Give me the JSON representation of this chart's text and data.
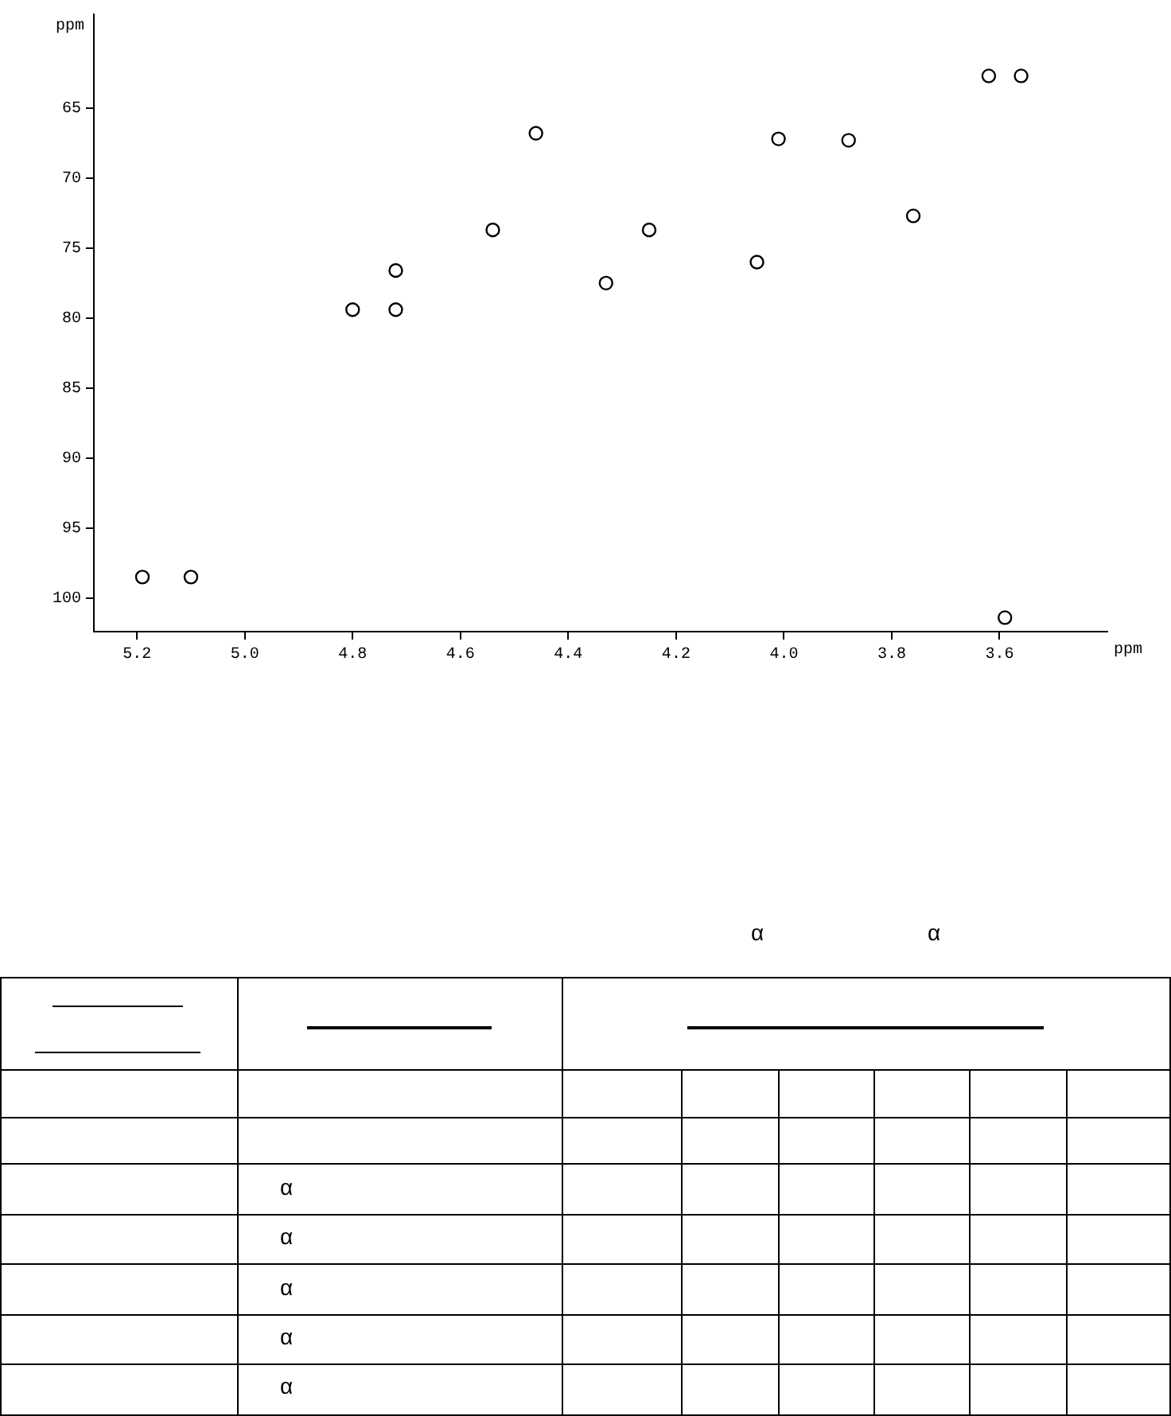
{
  "chart_data": [
    {
      "type": "scatter",
      "xlabel": "ppm",
      "ylabel": "ppm",
      "xlim": [
        5.28,
        3.4
      ],
      "ylim": [
        102.4,
        58.3
      ],
      "xticks": [
        5.2,
        {
          "value": 5,
          "label": "5.0"
        },
        4.8,
        4.6,
        4.4,
        4.2,
        {
          "value": 4,
          "label": "4.0"
        },
        3.8,
        3.6
      ],
      "yticks": [
        65,
        70,
        75,
        80,
        85,
        90,
        95,
        100
      ],
      "grid": false,
      "legend": false,
      "marker": "circle",
      "series": [
        {
          "color": "#000000",
          "x": [
            3.62,
            3.56,
            4.46,
            4.01,
            3.88,
            3.76,
            4.54,
            4.25,
            4.05,
            4.33,
            4.72,
            4.72,
            4.8,
            5.1,
            5.19,
            3.59
          ],
          "values": [
            62.7,
            62.7,
            66.8,
            67.2,
            67.3,
            72.7,
            73.7,
            73.7,
            76.0,
            77.5,
            76.6,
            79.4,
            79.4,
            98.5,
            98.5,
            101.4
          ]
        }
      ]
    },
    {
      "type": "other",
      "annotations": [
        "α",
        "α",
        "α",
        "α",
        "α",
        "α",
        "α"
      ]
    }
  ]
}
